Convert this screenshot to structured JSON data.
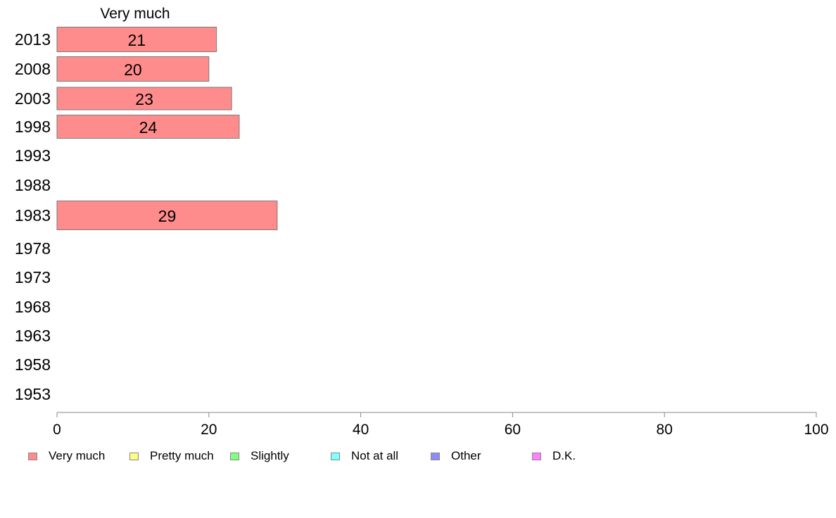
{
  "chart_data": {
    "type": "bar",
    "orientation": "horizontal",
    "stacked": true,
    "categories": [
      "2013",
      "2008",
      "2003",
      "1998",
      "1993",
      "1988",
      "1983",
      "1978",
      "1973",
      "1968",
      "1963",
      "1958",
      "1953"
    ],
    "series": [
      {
        "name": "Very much",
        "color": "#ff8c8c",
        "values": [
          21,
          20,
          23,
          24,
          null,
          null,
          29,
          null,
          null,
          null,
          null,
          null,
          null
        ]
      },
      {
        "name": "Pretty much",
        "color": "#ffff80",
        "values": [
          null,
          null,
          null,
          null,
          null,
          null,
          null,
          null,
          null,
          null,
          null,
          null,
          null
        ]
      },
      {
        "name": "Slightly",
        "color": "#80ff80",
        "values": [
          null,
          null,
          null,
          null,
          null,
          null,
          null,
          null,
          null,
          null,
          null,
          null,
          null
        ]
      },
      {
        "name": "Not at all",
        "color": "#80ffff",
        "values": [
          null,
          null,
          null,
          null,
          null,
          null,
          null,
          null,
          null,
          null,
          null,
          null,
          null
        ]
      },
      {
        "name": "Other",
        "color": "#8c8cff",
        "values": [
          null,
          null,
          null,
          null,
          null,
          null,
          null,
          null,
          null,
          null,
          null,
          null,
          null
        ]
      },
      {
        "name": "D.K.",
        "color": "#ff80ff",
        "values": [
          null,
          null,
          null,
          null,
          null,
          null,
          null,
          null,
          null,
          null,
          null,
          null,
          null
        ]
      }
    ],
    "column_label": "Very much",
    "xlim": [
      0,
      100
    ],
    "xticks": [
      0,
      20,
      40,
      60,
      80,
      100
    ],
    "grid": false,
    "legend_position": "bottom"
  }
}
